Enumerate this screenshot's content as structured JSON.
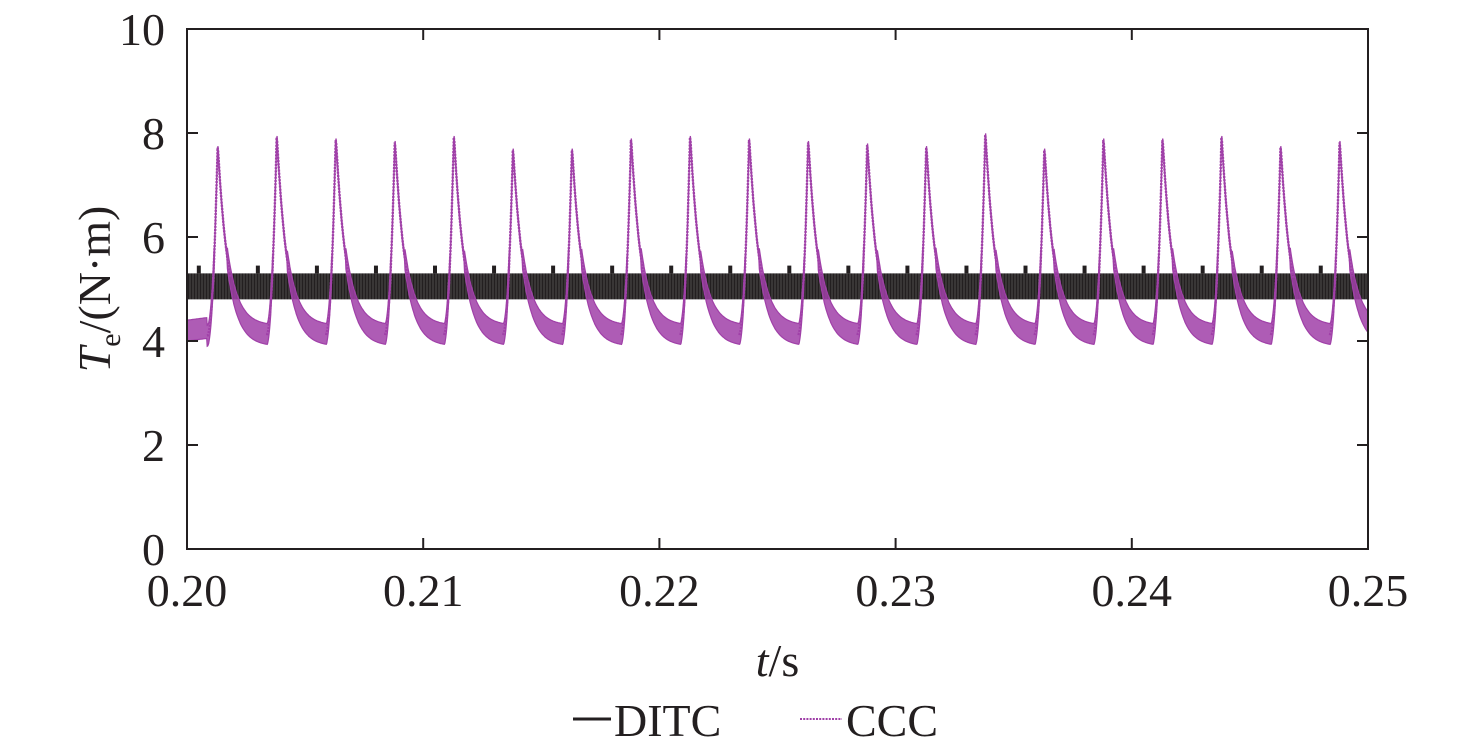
{
  "chart_data": {
    "type": "line",
    "x_range": [
      0.2,
      0.25
    ],
    "ylim": [
      0,
      10
    ],
    "x_ticks": [
      "0.20",
      "0.21",
      "0.22",
      "0.23",
      "0.24",
      "0.25"
    ],
    "y_ticks": [
      "0",
      "2",
      "4",
      "6",
      "8",
      "10"
    ],
    "xlabel": {
      "var": "t",
      "unit": "/s"
    },
    "ylabel": {
      "var": "T",
      "sub": "e",
      "unit": "/(N·m)"
    },
    "legend": {
      "position": "bottom-center"
    },
    "grid": false,
    "series": [
      {
        "name": "DITC",
        "color": "#231f20",
        "style": "solid",
        "band": [
          4.8,
          5.3
        ],
        "spike_value": 5.45,
        "spike_times": [
          0.2005,
          0.203,
          0.2055,
          0.208,
          0.2105,
          0.213,
          0.2155,
          0.218,
          0.2205,
          0.223,
          0.2255,
          0.228,
          0.2305,
          0.233,
          0.2355,
          0.238,
          0.2405,
          0.243,
          0.2455,
          0.248
        ]
      },
      {
        "name": "CCC",
        "color": "#a040a8",
        "style": "dotted",
        "trough": 4.1,
        "ripple_band": 0.4,
        "start_value": 4.2,
        "end_value": 4.2,
        "peaks": [
          {
            "t": 0.2013,
            "v": 7.8
          },
          {
            "t": 0.2038,
            "v": 8.0
          },
          {
            "t": 0.2063,
            "v": 7.95
          },
          {
            "t": 0.2088,
            "v": 7.9
          },
          {
            "t": 0.2113,
            "v": 8.0
          },
          {
            "t": 0.2138,
            "v": 7.75
          },
          {
            "t": 0.2163,
            "v": 7.75
          },
          {
            "t": 0.2188,
            "v": 7.95
          },
          {
            "t": 0.2213,
            "v": 8.0
          },
          {
            "t": 0.2238,
            "v": 7.95
          },
          {
            "t": 0.2263,
            "v": 7.9
          },
          {
            "t": 0.2288,
            "v": 7.85
          },
          {
            "t": 0.2313,
            "v": 7.8
          },
          {
            "t": 0.2338,
            "v": 8.05
          },
          {
            "t": 0.2363,
            "v": 7.75
          },
          {
            "t": 0.2388,
            "v": 7.95
          },
          {
            "t": 0.2413,
            "v": 7.95
          },
          {
            "t": 0.2438,
            "v": 8.0
          },
          {
            "t": 0.2463,
            "v": 7.8
          },
          {
            "t": 0.2488,
            "v": 7.9
          }
        ]
      }
    ]
  }
}
